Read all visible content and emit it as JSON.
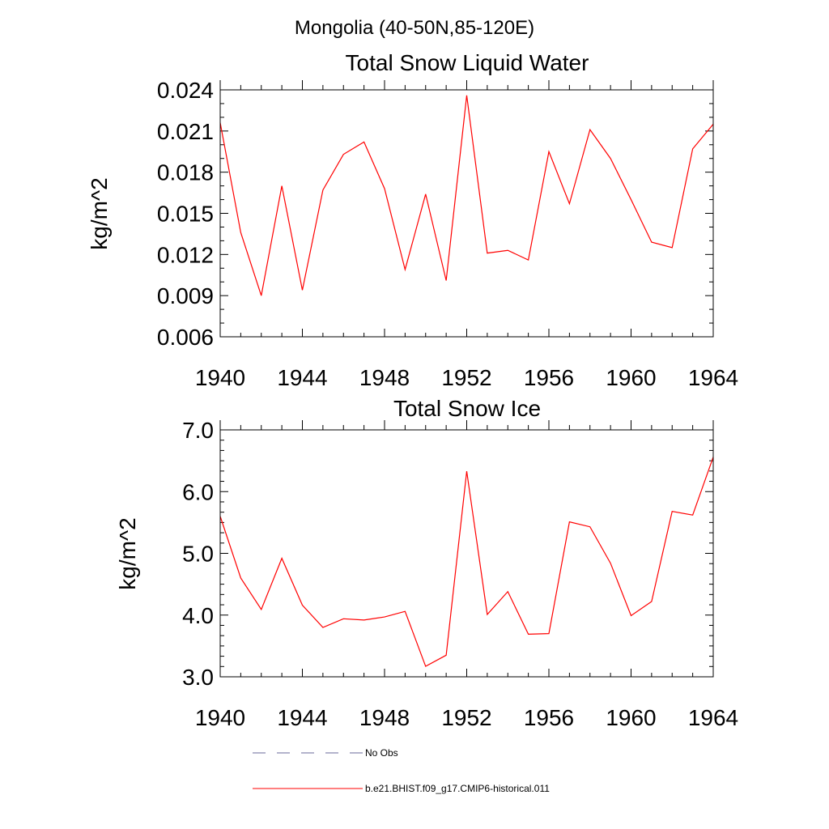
{
  "figure": {
    "title": "Mongolia (40-50N,85-120E)"
  },
  "chart_data": [
    {
      "type": "line",
      "title": "Total Snow Liquid Water",
      "xlabel": "",
      "ylabel": "kg/m^2",
      "xlim": [
        1940,
        1964
      ],
      "ylim": [
        0.006,
        0.024
      ],
      "xticks": [
        1940,
        1944,
        1948,
        1952,
        1956,
        1960,
        1964
      ],
      "xtick_labels": [
        "1940",
        "1944",
        "1948",
        "1952",
        "1956",
        "1960",
        "1964"
      ],
      "yticks": [
        0.006,
        0.009,
        0.012,
        0.015,
        0.018,
        0.021,
        0.024
      ],
      "ytick_labels": [
        "0.006",
        "0.009",
        "0.012",
        "0.015",
        "0.018",
        "0.021",
        "0.024"
      ],
      "grid": false,
      "x": [
        1940,
        1941,
        1942,
        1943,
        1944,
        1945,
        1946,
        1947,
        1948,
        1949,
        1950,
        1951,
        1952,
        1953,
        1954,
        1955,
        1956,
        1957,
        1958,
        1959,
        1960,
        1961,
        1962,
        1963,
        1964
      ],
      "series": [
        {
          "name": "b.e21.BHIST.f09_g17.CMIP6-historical.011",
          "color": "#ff0000",
          "values": [
            0.0216,
            0.0136,
            0.009,
            0.017,
            0.0094,
            0.0167,
            0.0193,
            0.0202,
            0.0168,
            0.0109,
            0.0164,
            0.0101,
            0.0236,
            0.0121,
            0.0123,
            0.0116,
            0.0195,
            0.0157,
            0.0211,
            0.019,
            0.016,
            0.0129,
            0.0125,
            0.0197,
            0.0215
          ]
        }
      ]
    },
    {
      "type": "line",
      "title": "Total Snow Ice",
      "xlabel": "",
      "ylabel": "kg/m^2",
      "xlim": [
        1940,
        1964
      ],
      "ylim": [
        3.0,
        7.0
      ],
      "xticks": [
        1940,
        1944,
        1948,
        1952,
        1956,
        1960,
        1964
      ],
      "xtick_labels": [
        "1940",
        "1944",
        "1948",
        "1952",
        "1956",
        "1960",
        "1964"
      ],
      "yticks": [
        3.0,
        4.0,
        5.0,
        6.0,
        7.0
      ],
      "ytick_labels": [
        "3.0",
        "4.0",
        "5.0",
        "6.0",
        "7.0"
      ],
      "grid": false,
      "x": [
        1940,
        1941,
        1942,
        1943,
        1944,
        1945,
        1946,
        1947,
        1948,
        1949,
        1950,
        1951,
        1952,
        1953,
        1954,
        1955,
        1956,
        1957,
        1958,
        1959,
        1960,
        1961,
        1962,
        1963,
        1964
      ],
      "series": [
        {
          "name": "b.e21.BHIST.f09_g17.CMIP6-historical.011",
          "color": "#ff0000",
          "values": [
            5.6,
            4.6,
            4.09,
            4.92,
            4.16,
            3.8,
            3.94,
            3.92,
            3.97,
            4.06,
            3.17,
            3.35,
            6.33,
            4.01,
            4.38,
            3.69,
            3.7,
            5.51,
            5.43,
            4.84,
            3.99,
            4.22,
            5.68,
            5.62,
            6.56
          ]
        }
      ]
    }
  ],
  "legend": {
    "placement": "bottom",
    "items": [
      {
        "label": "No Obs",
        "color": "#6a6a9a",
        "style": "dashed"
      },
      {
        "label": "b.e21.BHIST.f09_g17.CMIP6-historical.011",
        "color": "#ff0000",
        "style": "solid"
      }
    ]
  }
}
